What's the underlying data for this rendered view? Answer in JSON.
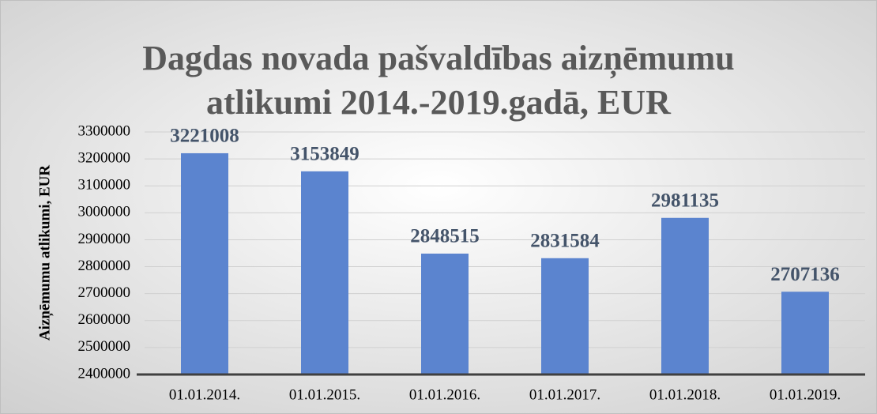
{
  "chart_data": {
    "type": "bar",
    "title": [
      "Dagdas novada pašvaldības aizņēmumu",
      "atlikumi 2014.-2019.gadā, EUR"
    ],
    "y_label": "Aizņēmumu atlikumi, EUR",
    "categories": [
      "01.01.2014.",
      "01.01.2015.",
      "01.01.2016.",
      "01.01.2017.",
      "01.01.2018.",
      "01.01.2019."
    ],
    "values": [
      3221008,
      3153849,
      2848515,
      2831584,
      2981135,
      2707136
    ],
    "color": "#5b84cf",
    "ylim": [
      2400000,
      3300000
    ],
    "yticks": [
      2400000,
      2500000,
      2600000,
      2700000,
      2800000,
      2900000,
      3000000,
      3100000,
      3200000,
      3300000
    ],
    "grid": true
  }
}
